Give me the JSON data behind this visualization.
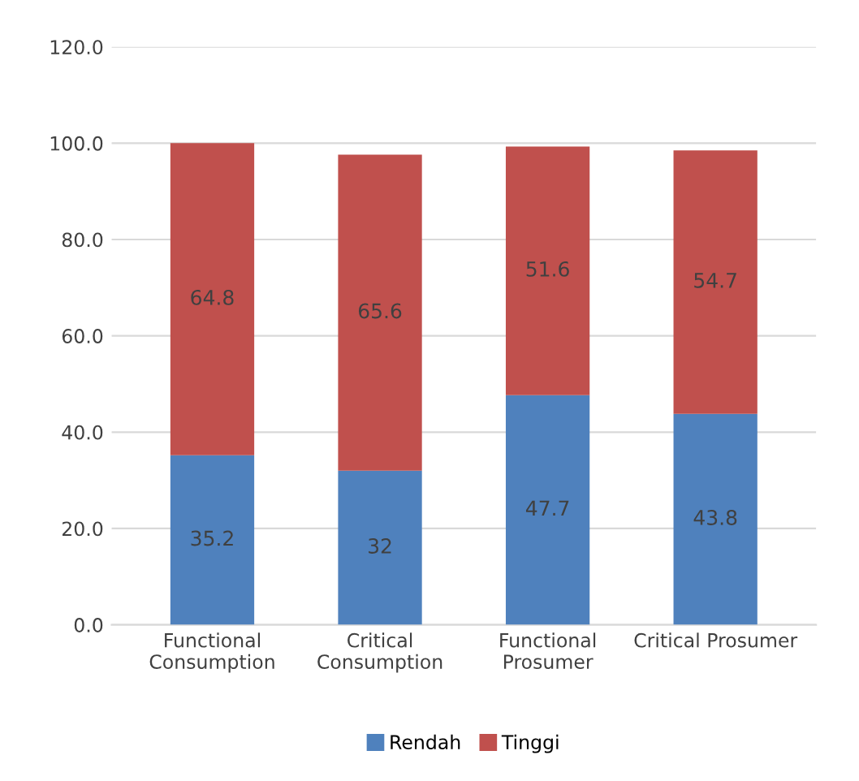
{
  "chart_data": {
    "type": "bar",
    "stacked": true,
    "categories": [
      "Functional\nConsumption",
      "Critical\nConsumption",
      "Functional\nProsumer",
      "Critical Prosumer"
    ],
    "series": [
      {
        "name": "Rendah",
        "color": "#4f81bd",
        "values": [
          35.2,
          32,
          47.7,
          43.8
        ]
      },
      {
        "name": "Tinggi",
        "color": "#c0504d",
        "values": [
          64.8,
          65.6,
          51.6,
          54.7
        ]
      }
    ],
    "ylim": [
      0,
      120
    ],
    "yticks": [
      {
        "value": 0,
        "label": "0.0"
      },
      {
        "value": 20,
        "label": "20.0"
      },
      {
        "value": 40,
        "label": "40.0"
      },
      {
        "value": 60,
        "label": "60.0"
      },
      {
        "value": 80,
        "label": "80.0"
      },
      {
        "value": 100,
        "label": "100.0"
      },
      {
        "value": 120,
        "label": "120.0"
      }
    ],
    "grid": "y",
    "legend": "bottom",
    "data_labels": true
  }
}
